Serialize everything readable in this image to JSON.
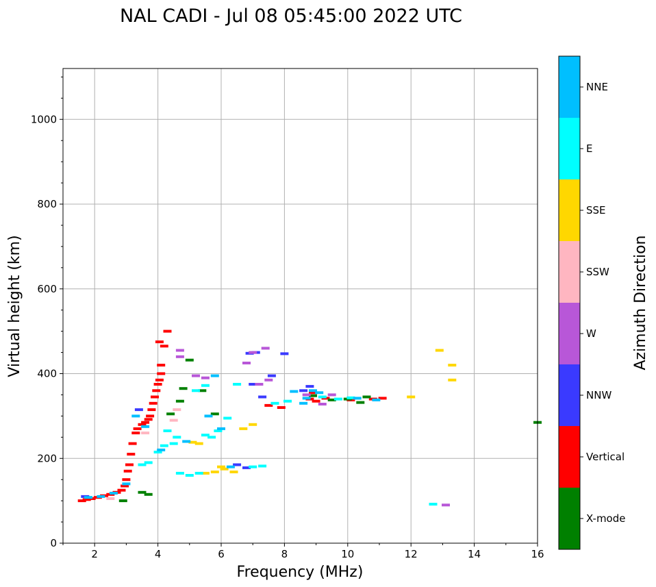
{
  "chart_data": {
    "type": "scatter",
    "title": "NAL CADI - Jul 08 05:45:00 2022 UTC",
    "xlabel": "Frequency (MHz)",
    "ylabel": "Virtual height (km)",
    "xlim": [
      1,
      16
    ],
    "ylim": [
      0,
      1120
    ],
    "xticks": [
      2,
      4,
      6,
      8,
      10,
      12,
      14,
      16
    ],
    "yticks": [
      0,
      200,
      400,
      600,
      800,
      1000
    ],
    "grid": true,
    "colorbar": {
      "label": "Azimuth Direction",
      "categories": [
        {
          "name": "X-mode",
          "color": "#008000"
        },
        {
          "name": "Vertical",
          "color": "#ff0000"
        },
        {
          "name": "NNW",
          "color": "#3a3aff"
        },
        {
          "name": "W",
          "color": "#b857d8"
        },
        {
          "name": "SSW",
          "color": "#ffb6c1"
        },
        {
          "name": "SSE",
          "color": "#ffd700"
        },
        {
          "name": "E",
          "color": "#00ffff"
        },
        {
          "name": "NNE",
          "color": "#00bfff"
        }
      ]
    },
    "series": [
      {
        "name": "Vertical",
        "points": [
          [
            1.6,
            100
          ],
          [
            1.75,
            103
          ],
          [
            1.9,
            105
          ],
          [
            2.1,
            108
          ],
          [
            2.3,
            112
          ],
          [
            2.5,
            115
          ],
          [
            2.7,
            120
          ],
          [
            2.85,
            125
          ],
          [
            2.95,
            135
          ],
          [
            3.0,
            150
          ],
          [
            3.05,
            170
          ],
          [
            3.1,
            185
          ],
          [
            3.15,
            210
          ],
          [
            3.2,
            235
          ],
          [
            3.3,
            260
          ],
          [
            3.35,
            270
          ],
          [
            3.5,
            280
          ],
          [
            3.6,
            285
          ],
          [
            3.7,
            292
          ],
          [
            3.75,
            300
          ],
          [
            3.8,
            315
          ],
          [
            3.85,
            330
          ],
          [
            3.9,
            345
          ],
          [
            3.95,
            360
          ],
          [
            4.0,
            375
          ],
          [
            4.05,
            385
          ],
          [
            4.1,
            400
          ],
          [
            4.1,
            420
          ],
          [
            4.05,
            475
          ],
          [
            4.2,
            465
          ],
          [
            4.3,
            500
          ],
          [
            7.5,
            325
          ],
          [
            7.9,
            320
          ],
          [
            8.9,
            355
          ],
          [
            8.8,
            340
          ],
          [
            9.0,
            335
          ],
          [
            9.3,
            342
          ],
          [
            10.1,
            338
          ],
          [
            10.8,
            340
          ],
          [
            11.1,
            342
          ]
        ]
      },
      {
        "name": "X-mode",
        "points": [
          [
            2.9,
            100
          ],
          [
            3.5,
            120
          ],
          [
            3.7,
            115
          ],
          [
            4.4,
            305
          ],
          [
            4.8,
            365
          ],
          [
            5.0,
            432
          ],
          [
            5.4,
            360
          ],
          [
            5.8,
            305
          ],
          [
            4.7,
            335
          ],
          [
            10.0,
            340
          ],
          [
            10.4,
            332
          ],
          [
            16.0,
            285
          ],
          [
            8.9,
            348
          ],
          [
            9.5,
            338
          ],
          [
            10.6,
            345
          ]
        ]
      },
      {
        "name": "NNW",
        "points": [
          [
            1.7,
            110
          ],
          [
            3.4,
            315
          ],
          [
            6.5,
            185
          ],
          [
            6.8,
            178
          ],
          [
            7.0,
            375
          ],
          [
            7.1,
            450
          ],
          [
            7.3,
            345
          ],
          [
            7.6,
            395
          ],
          [
            8.0,
            447
          ],
          [
            8.6,
            360
          ],
          [
            8.8,
            370
          ],
          [
            6.9,
            448
          ]
        ]
      },
      {
        "name": "W",
        "points": [
          [
            4.7,
            440
          ],
          [
            4.7,
            455
          ],
          [
            5.2,
            395
          ],
          [
            5.5,
            390
          ],
          [
            6.8,
            425
          ],
          [
            7.0,
            450
          ],
          [
            7.2,
            375
          ],
          [
            7.4,
            460
          ],
          [
            7.5,
            385
          ],
          [
            8.7,
            350
          ],
          [
            9.2,
            328
          ],
          [
            13.1,
            90
          ],
          [
            9.5,
            350
          ]
        ]
      },
      {
        "name": "SSW",
        "points": [
          [
            2.5,
            105
          ],
          [
            3.6,
            260
          ],
          [
            4.5,
            290
          ],
          [
            4.6,
            315
          ]
        ]
      },
      {
        "name": "SSE",
        "points": [
          [
            5.1,
            238
          ],
          [
            5.3,
            235
          ],
          [
            5.5,
            165
          ],
          [
            5.8,
            168
          ],
          [
            6.1,
            175
          ],
          [
            6.4,
            168
          ],
          [
            6.7,
            270
          ],
          [
            7.0,
            280
          ],
          [
            12.0,
            345
          ],
          [
            12.9,
            455
          ],
          [
            13.3,
            420
          ],
          [
            13.3,
            385
          ],
          [
            6.0,
            180
          ]
        ]
      },
      {
        "name": "E",
        "points": [
          [
            3.5,
            185
          ],
          [
            3.7,
            190
          ],
          [
            4.0,
            215
          ],
          [
            4.2,
            230
          ],
          [
            4.5,
            235
          ],
          [
            4.7,
            165
          ],
          [
            5.0,
            160
          ],
          [
            5.3,
            165
          ],
          [
            5.5,
            255
          ],
          [
            5.7,
            250
          ],
          [
            5.9,
            265
          ],
          [
            6.2,
            295
          ],
          [
            6.5,
            375
          ],
          [
            7.0,
            180
          ],
          [
            7.3,
            182
          ],
          [
            7.7,
            330
          ],
          [
            8.1,
            335
          ],
          [
            9.2,
            345
          ],
          [
            9.7,
            340
          ],
          [
            10.1,
            343
          ],
          [
            12.7,
            92
          ],
          [
            4.3,
            265
          ],
          [
            4.6,
            250
          ],
          [
            5.2,
            360
          ],
          [
            5.5,
            372
          ]
        ]
      },
      {
        "name": "NNE",
        "points": [
          [
            1.8,
            108
          ],
          [
            2.2,
            110
          ],
          [
            2.6,
            118
          ],
          [
            3.0,
            140
          ],
          [
            3.3,
            300
          ],
          [
            3.6,
            275
          ],
          [
            4.1,
            220
          ],
          [
            4.9,
            240
          ],
          [
            5.6,
            300
          ],
          [
            6.0,
            270
          ],
          [
            8.3,
            358
          ],
          [
            8.6,
            330
          ],
          [
            8.7,
            342
          ],
          [
            8.9,
            360
          ],
          [
            9.1,
            355
          ],
          [
            10.3,
            342
          ],
          [
            10.9,
            338
          ],
          [
            5.8,
            395
          ],
          [
            6.3,
            180
          ]
        ]
      }
    ]
  }
}
